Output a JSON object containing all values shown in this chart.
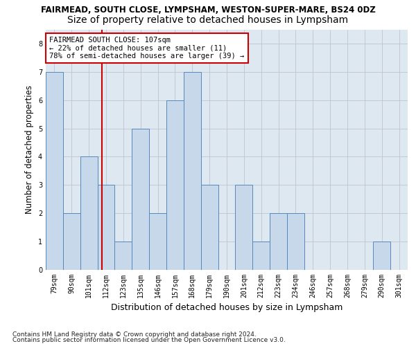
{
  "title": "FAIRMEAD, SOUTH CLOSE, LYMPSHAM, WESTON-SUPER-MARE, BS24 0DZ",
  "subtitle": "Size of property relative to detached houses in Lympsham",
  "xlabel": "Distribution of detached houses by size in Lympsham",
  "ylabel": "Number of detached properties",
  "categories": [
    "79sqm",
    "90sqm",
    "101sqm",
    "112sqm",
    "123sqm",
    "135sqm",
    "146sqm",
    "157sqm",
    "168sqm",
    "179sqm",
    "190sqm",
    "201sqm",
    "212sqm",
    "223sqm",
    "234sqm",
    "246sqm",
    "257sqm",
    "268sqm",
    "279sqm",
    "290sqm",
    "301sqm"
  ],
  "values": [
    7,
    2,
    4,
    3,
    1,
    5,
    2,
    6,
    7,
    3,
    0,
    3,
    1,
    2,
    2,
    0,
    0,
    0,
    0,
    1,
    0
  ],
  "bar_color": "#c8d8eb",
  "bar_edge_color": "#5588bb",
  "background_color": "#ffffff",
  "plot_bg_color": "#dde8f0",
  "grid_color": "#bbbbcc",
  "annotation_text": "FAIRMEAD SOUTH CLOSE: 107sqm\n← 22% of detached houses are smaller (11)\n78% of semi-detached houses are larger (39) →",
  "annotation_box_color": "#ffffff",
  "annotation_box_edge_color": "#cc0000",
  "vline_x_index": 2.75,
  "vline_color": "#cc0000",
  "ylim": [
    0,
    8.5
  ],
  "yticks": [
    0,
    1,
    2,
    3,
    4,
    5,
    6,
    7,
    8
  ],
  "footnote1": "Contains HM Land Registry data © Crown copyright and database right 2024.",
  "footnote2": "Contains public sector information licensed under the Open Government Licence v3.0.",
  "title_fontsize": 8.5,
  "subtitle_fontsize": 10,
  "tick_fontsize": 7,
  "ylabel_fontsize": 8.5,
  "xlabel_fontsize": 9,
  "annotation_fontsize": 7.5,
  "footnote_fontsize": 6.5
}
